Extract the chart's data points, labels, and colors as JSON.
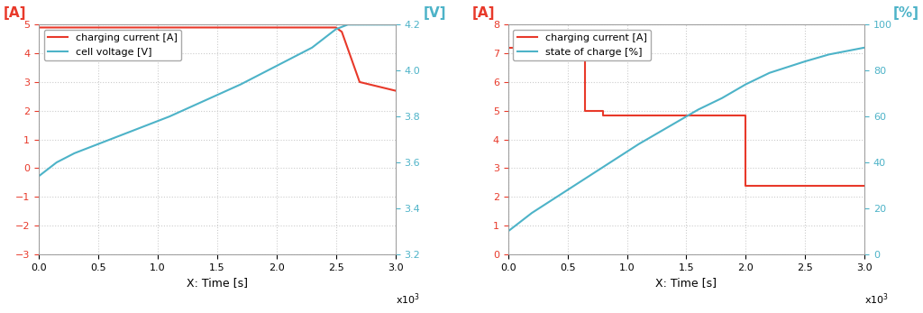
{
  "left": {
    "xlabel": "X: Time [s]",
    "ylabel_left": "[A]",
    "ylabel_right": "[V]",
    "legend": [
      "charging current [A]",
      "cell voltage [V]"
    ],
    "line_colors": [
      "#e8392a",
      "#4db3c8"
    ],
    "xlim": [
      0,
      3000
    ],
    "ylim_left": [
      -3,
      5
    ],
    "ylim_right": [
      3.2,
      4.2
    ],
    "xticks": [
      0,
      500,
      1000,
      1500,
      2000,
      2500,
      3000
    ],
    "yticks_left": [
      -3,
      -2,
      -1,
      0,
      1,
      2,
      3,
      4,
      5
    ],
    "yticks_right": [
      3.2,
      3.4,
      3.6,
      3.8,
      4.0,
      4.2
    ],
    "current_x": [
      0,
      10,
      2500,
      2550,
      2700,
      3000
    ],
    "current_y": [
      4.9,
      4.9,
      4.9,
      4.75,
      3.0,
      2.7
    ],
    "voltage_x": [
      0,
      50,
      150,
      300,
      500,
      800,
      1100,
      1400,
      1700,
      2000,
      2300,
      2500,
      2600,
      2700,
      2800,
      3000
    ],
    "voltage_y": [
      3.54,
      3.56,
      3.6,
      3.64,
      3.68,
      3.74,
      3.8,
      3.87,
      3.94,
      4.02,
      4.1,
      4.18,
      4.2,
      4.2,
      4.2,
      4.2
    ]
  },
  "right": {
    "xlabel": "X: Time [s]",
    "ylabel_left": "[A]",
    "ylabel_right": "[%]",
    "legend": [
      "charging current [A]",
      "state of charge [%]"
    ],
    "line_colors": [
      "#e8392a",
      "#4db3c8"
    ],
    "xlim": [
      0,
      3000
    ],
    "ylim_left": [
      0,
      8
    ],
    "ylim_right": [
      0,
      100
    ],
    "xticks": [
      0,
      500,
      1000,
      1500,
      2000,
      2500,
      3000
    ],
    "yticks_left": [
      0,
      1,
      2,
      3,
      4,
      5,
      6,
      7,
      8
    ],
    "yticks_right": [
      0,
      20,
      40,
      60,
      80,
      100
    ],
    "current_x": [
      0,
      650,
      650,
      800,
      800,
      2000,
      2000,
      3000
    ],
    "current_y": [
      7.2,
      7.2,
      5.0,
      5.0,
      4.85,
      4.85,
      2.4,
      2.4
    ],
    "soc_x": [
      0,
      200,
      500,
      800,
      1100,
      1400,
      1600,
      1800,
      2000,
      2200,
      2500,
      2700,
      3000
    ],
    "soc_y": [
      10,
      18,
      28,
      38,
      48,
      57,
      63,
      68,
      74,
      79,
      84,
      87,
      90
    ]
  },
  "bg_color": "#ffffff",
  "grid_color": "#cccccc",
  "label_color_left": "#e8392a",
  "label_color_right": "#4db3c8"
}
